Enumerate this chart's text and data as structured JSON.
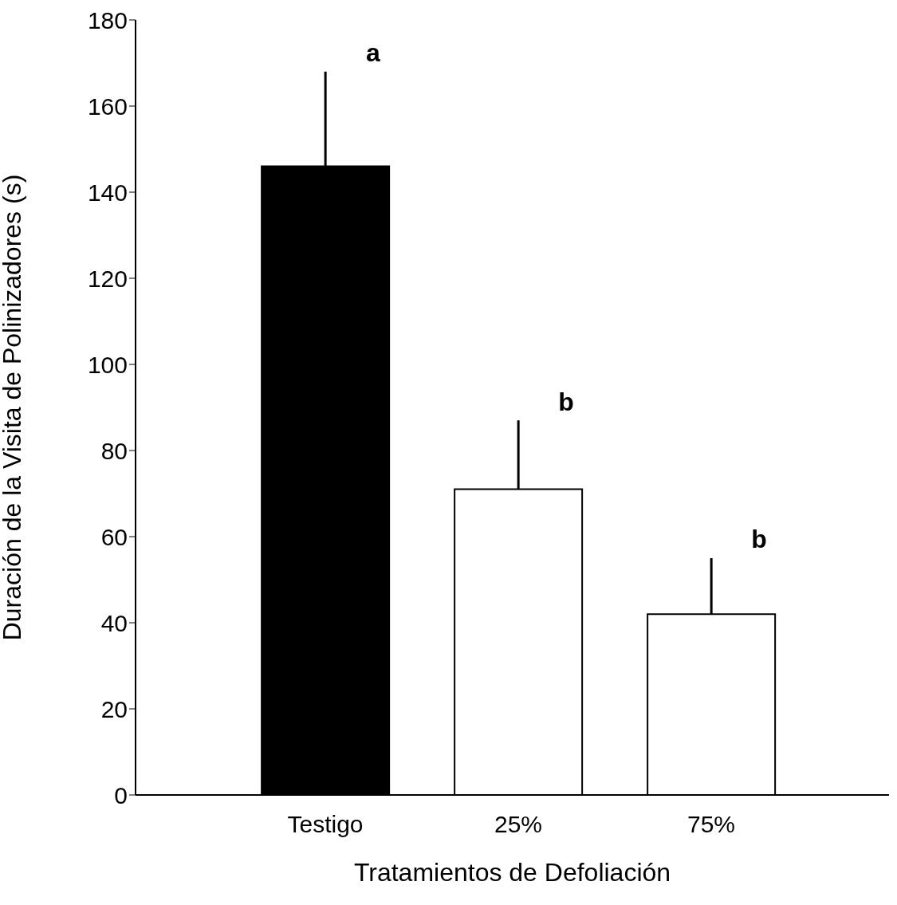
{
  "chart_data": {
    "type": "bar",
    "xlabel": "Tratamientos de Defoliación",
    "ylabel": "Duración de la Visita de Polinizadores (s)",
    "categories": [
      "Testigo",
      "25%",
      "75%"
    ],
    "values": [
      146,
      71,
      42
    ],
    "colors": [
      "#000000",
      "#ffffff",
      "#ffffff"
    ],
    "errors": [
      [
        146,
        168
      ],
      [
        71,
        87
      ],
      [
        42,
        55
      ]
    ],
    "ylim": [
      0,
      180
    ],
    "yticks": [
      0,
      20,
      40,
      60,
      80,
      100,
      120,
      140,
      160,
      180
    ],
    "grid": false,
    "legend": false,
    "annotations": [
      "a",
      "b",
      "b"
    ]
  }
}
